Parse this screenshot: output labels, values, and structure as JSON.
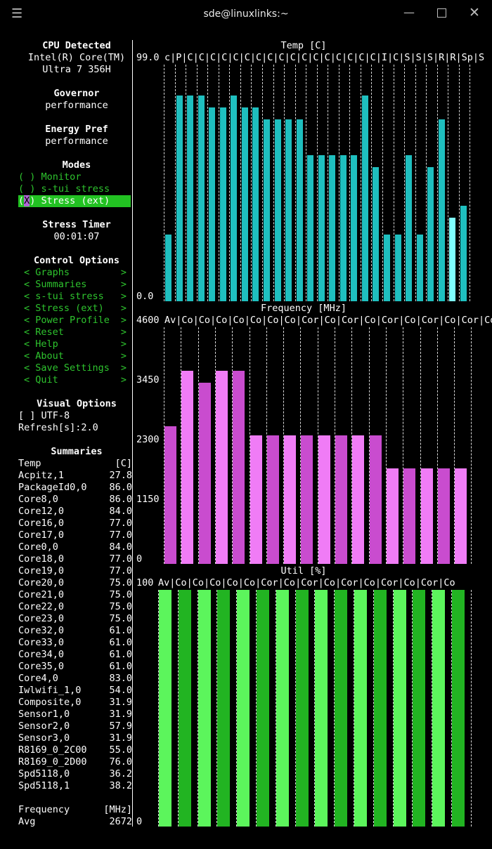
{
  "window": {
    "title": "sde@linuxlinks:~"
  },
  "sidebar": {
    "cpu_header": "CPU Detected",
    "cpu_line1": "Intel(R) Core(TM)",
    "cpu_line2": "Ultra 7 356H",
    "governor_header": "Governor",
    "governor_value": "performance",
    "energy_header": "Energy Pref",
    "energy_value": "performance",
    "modes_header": "Modes",
    "modes": [
      {
        "mark": " ",
        "label": "Monitor"
      },
      {
        "mark": " ",
        "label": "s-tui stress"
      },
      {
        "mark": "X",
        "label": "Stress (ext)"
      }
    ],
    "timer_header": "Stress Timer",
    "timer_value": "00:01:07",
    "control_header": "Control Options",
    "controls": [
      "Graphs",
      "Summaries",
      "s-tui stress",
      "Stress (ext)",
      "Power Profile",
      "Reset",
      "Help",
      "About",
      "Save Settings",
      "Quit"
    ],
    "visual_header": "Visual Options",
    "utf8_label": "[ ] UTF-8",
    "refresh_label": "Refresh[s]:2.0"
  },
  "summaries": {
    "header": "Summaries",
    "temp_label": "Temp",
    "temp_unit": "[C]",
    "temps": [
      {
        "name": "Acpitz,1",
        "value": "27.8"
      },
      {
        "name": "PackageId0,0",
        "value": "86.0"
      },
      {
        "name": "Core8,0",
        "value": "86.0"
      },
      {
        "name": "Core12,0",
        "value": "84.0"
      },
      {
        "name": "Core16,0",
        "value": "77.0"
      },
      {
        "name": "Core17,0",
        "value": "77.0"
      },
      {
        "name": "Core0,0",
        "value": "84.0"
      },
      {
        "name": "Core18,0",
        "value": "77.0"
      },
      {
        "name": "Core19,0",
        "value": "77.0"
      },
      {
        "name": "Core20,0",
        "value": "75.0"
      },
      {
        "name": "Core21,0",
        "value": "75.0"
      },
      {
        "name": "Core22,0",
        "value": "75.0"
      },
      {
        "name": "Core23,0",
        "value": "75.0"
      },
      {
        "name": "Core32,0",
        "value": "61.0"
      },
      {
        "name": "Core33,0",
        "value": "61.0"
      },
      {
        "name": "Core34,0",
        "value": "61.0"
      },
      {
        "name": "Core35,0",
        "value": "61.0"
      },
      {
        "name": "Core4,0",
        "value": "83.0"
      },
      {
        "name": "Iwlwifi_1,0",
        "value": "54.0"
      },
      {
        "name": "Composite,0",
        "value": "31.9"
      },
      {
        "name": "Sensor1,0",
        "value": "31.9"
      },
      {
        "name": "Sensor2,0",
        "value": "57.9"
      },
      {
        "name": "Sensor3,0",
        "value": "31.9"
      },
      {
        "name": "R8169_0_2C00",
        "value": "55.0"
      },
      {
        "name": "R8169_0_2D00",
        "value": "76.0"
      },
      {
        "name": "Spd5118,0",
        "value": "36.2"
      },
      {
        "name": "Spd5118,1",
        "value": "38.2"
      }
    ],
    "freq_label": "Frequency",
    "freq_unit": "[MHz]",
    "freq_avg_label": "Avg",
    "freq_avg_value": "2672"
  },
  "graphs": {
    "temp": {
      "title": "Temp [C]",
      "y_max_label": "99.0",
      "y_min_label": "0.0",
      "header": "c|P|C|C|C|C|C|C|C|C|C|C|C|C|C|C|C|C|C|I|C|S|S|S|R|R|Sp|S",
      "color": "#1fbfbf",
      "highlight_color": "#7fffff"
    },
    "freq": {
      "title": "Frequency [MHz]",
      "y_max_label": "4600",
      "y_mid1_label": "3450",
      "y_mid2_label": "2300",
      "y_mid3_label": "1150",
      "y_min_label": "0",
      "header": "Av|Co|Co|Co|Co|Co|Co|Co|Cor|Co|Cor|Co|Cor|Co|Cor|Co|Cor|Co",
      "color": "#c94ccf",
      "light_color": "#f07cf6"
    },
    "util": {
      "title": "Util [%]",
      "y_max_label": "100",
      "y_min_label": "0",
      "header": "Av|Co|Co|Co|Co|Co|Cor|Co|Cor|Co|Cor|Co|Cor|Co|Cor|Co",
      "color": "#22b422",
      "light_color": "#5cf55c"
    }
  },
  "chart_data": [
    {
      "type": "bar",
      "title": "Temp [C]",
      "ylim": [
        0,
        99.0
      ],
      "categories": [
        "c",
        "P",
        "C",
        "C",
        "C",
        "C",
        "C",
        "C",
        "C",
        "C",
        "C",
        "C",
        "C",
        "C",
        "C",
        "C",
        "C",
        "C",
        "C",
        "I",
        "C",
        "S",
        "S",
        "S",
        "R",
        "R",
        "Sp",
        "S"
      ],
      "values": [
        27.8,
        86.0,
        86.0,
        86.0,
        81.0,
        81.0,
        86.0,
        81.0,
        81.0,
        76.0,
        76.0,
        76.0,
        76.0,
        61.0,
        61.0,
        61.0,
        61.0,
        61.0,
        86.0,
        56.0,
        28.0,
        28.0,
        61.0,
        28.0,
        56.0,
        76.0,
        35.0,
        40.0
      ]
    },
    {
      "type": "bar",
      "title": "Frequency [MHz]",
      "ylim": [
        0,
        4600
      ],
      "categories": [
        "Av",
        "Co",
        "Co",
        "Co",
        "Co",
        "Co",
        "Co",
        "Co",
        "Cor",
        "Co",
        "Cor",
        "Co",
        "Cor",
        "Co",
        "Cor",
        "Co",
        "Cor",
        "Co"
      ],
      "values": [
        2672,
        3750,
        3520,
        3750,
        3750,
        2500,
        2500,
        2500,
        2500,
        2500,
        2500,
        2500,
        2500,
        1850,
        1850,
        1850,
        1850,
        1850
      ]
    },
    {
      "type": "bar",
      "title": "Util [%]",
      "ylim": [
        0,
        100
      ],
      "categories": [
        "Av",
        "Co",
        "Co",
        "Co",
        "Co",
        "Co",
        "Cor",
        "Co",
        "Cor",
        "Co",
        "Cor",
        "Co",
        "Cor",
        "Co",
        "Cor",
        "Co"
      ],
      "values": [
        100,
        100,
        100,
        100,
        100,
        100,
        100,
        100,
        100,
        100,
        100,
        100,
        100,
        100,
        100,
        100
      ]
    }
  ]
}
